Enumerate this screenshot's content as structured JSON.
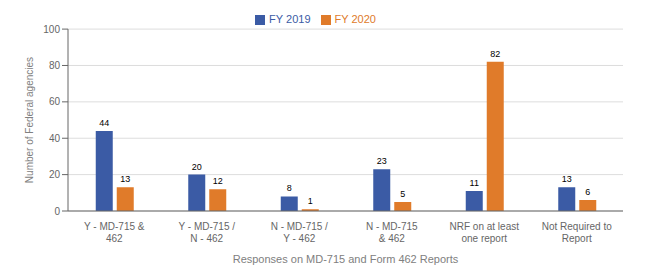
{
  "chart_data": {
    "type": "bar",
    "xlabel": "Responses on MD-715 and Form 462 Reports",
    "ylabel": "Number of Federal agencies",
    "categories": [
      "Y - MD-715 &\n462",
      "Y - MD-715 /\nN - 462",
      "N - MD-715 /\nY - 462",
      "N - MD-715\n& 462",
      "NRF on at least\none report",
      "Not Required to\nReport"
    ],
    "series": [
      {
        "name": "FY 2019",
        "color": "#3B5BA5",
        "values": [
          44,
          20,
          8,
          23,
          11,
          13
        ]
      },
      {
        "name": "FY 2020",
        "color": "#E07B2A",
        "values": [
          13,
          12,
          1,
          5,
          82,
          6
        ]
      }
    ],
    "ylim": [
      0,
      100
    ],
    "yticks": [
      0,
      20,
      40,
      60,
      80,
      100
    ],
    "grid": true,
    "legend": "top",
    "data_labels": true
  }
}
